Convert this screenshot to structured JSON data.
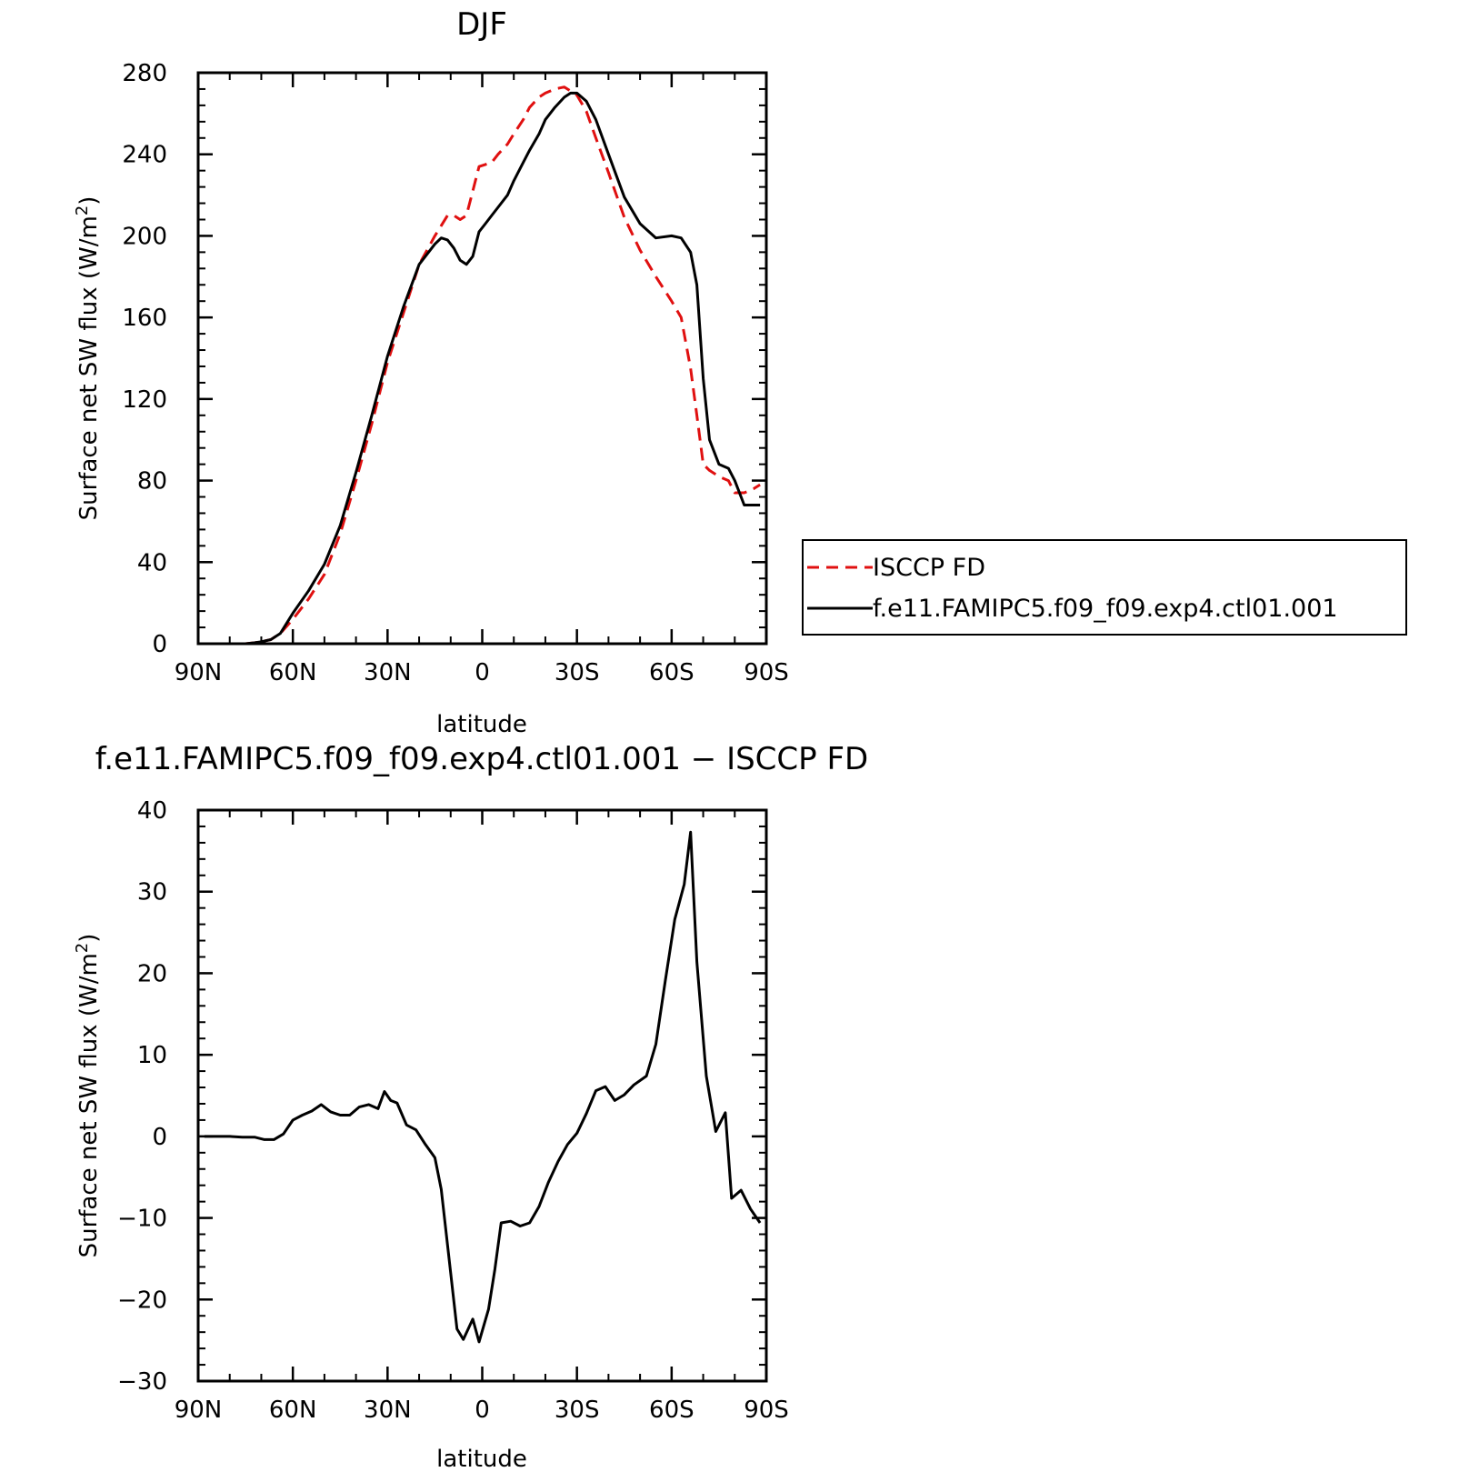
{
  "chart_data": [
    {
      "type": "line",
      "title": "DJF",
      "xlabel": "latitude",
      "ylabel_main": "Surface net SW flux (W/m",
      "ylabel_sup": "2",
      "ylabel_tail": ")",
      "xlim": [
        90,
        -90
      ],
      "ylim": [
        0,
        280
      ],
      "x_major_ticks": [
        90,
        60,
        30,
        0,
        -30,
        -60,
        -90
      ],
      "x_tick_labels": [
        "90N",
        "60N",
        "30N",
        "0",
        "30S",
        "60S",
        "90S"
      ],
      "y_major_ticks": [
        0,
        40,
        80,
        120,
        160,
        200,
        240,
        280
      ],
      "y_tick_labels": [
        "0",
        "40",
        "80",
        "120",
        "160",
        "200",
        "240",
        "280"
      ],
      "legend": {
        "placement": "right",
        "entries": [
          "ISCCP FD",
          "f.e11.FAMIPC5.f09_f09.exp4.ctl01.001"
        ]
      },
      "series": [
        {
          "name": "ISCCP FD",
          "color": "#e01010",
          "dash": true,
          "x": [
            88,
            85,
            80,
            75,
            72,
            70,
            67,
            64,
            60,
            55,
            50,
            45,
            40,
            35,
            30,
            25,
            20,
            15,
            13,
            11,
            9,
            7,
            5,
            3,
            1,
            -1,
            -3,
            -5,
            -8,
            -10,
            -13,
            -15,
            -18,
            -20,
            -23,
            -26,
            -28,
            -30,
            -33,
            -36,
            -40,
            -45,
            -50,
            -55,
            -60,
            -63,
            -66,
            -68,
            -70,
            -72,
            -75,
            -78,
            -80,
            -83,
            -86,
            -88
          ],
          "y": [
            0,
            0,
            0,
            0,
            0.5,
            1,
            2,
            5,
            12,
            22,
            34,
            54,
            80,
            108,
            138,
            162,
            186,
            200,
            205,
            210,
            210,
            208,
            210,
            222,
            234,
            235,
            236,
            240,
            245,
            250,
            257,
            263,
            268,
            270,
            272,
            273,
            271,
            269,
            261,
            248,
            231,
            209,
            193,
            180,
            168,
            160,
            135,
            112,
            88,
            85,
            82,
            80,
            74,
            74,
            76,
            78
          ]
        },
        {
          "name": "f.e11.FAMIPC5.f09_f09.exp4.ctl01.001",
          "color": "#000000",
          "dash": false,
          "x": [
            88,
            85,
            80,
            75,
            72,
            70,
            67,
            64,
            60,
            55,
            50,
            45,
            40,
            35,
            30,
            25,
            20,
            15,
            13,
            11,
            9,
            7,
            5,
            3,
            1,
            -1,
            -3,
            -5,
            -8,
            -10,
            -13,
            -15,
            -18,
            -20,
            -23,
            -26,
            -28,
            -30,
            -33,
            -36,
            -40,
            -45,
            -50,
            -55,
            -60,
            -63,
            -66,
            -68,
            -70,
            -72,
            -75,
            -78,
            -80,
            -83,
            -86,
            -88
          ],
          "y": [
            0,
            0,
            0,
            0,
            0.5,
            1,
            2,
            5,
            15,
            26,
            39,
            58,
            84,
            112,
            141,
            165,
            186,
            196,
            199,
            198,
            194,
            188,
            186,
            190,
            202,
            206,
            210,
            214,
            220,
            227,
            236,
            242,
            250,
            257,
            263,
            268,
            270,
            270,
            266,
            257,
            240,
            219,
            206,
            199,
            200,
            199,
            192,
            176,
            130,
            100,
            88,
            86,
            80,
            68,
            68,
            68
          ]
        }
      ]
    },
    {
      "type": "line",
      "title": "f.e11.FAMIPC5.f09_f09.exp4.ctl01.001 − ISCCP FD",
      "xlabel": "latitude",
      "ylabel_main": "Surface net SW flux (W/m",
      "ylabel_sup": "2",
      "ylabel_tail": ")",
      "xlim": [
        90,
        -90
      ],
      "ylim": [
        -30,
        40
      ],
      "x_major_ticks": [
        90,
        60,
        30,
        0,
        -30,
        -60,
        -90
      ],
      "x_tick_labels": [
        "90N",
        "60N",
        "30N",
        "0",
        "30S",
        "60S",
        "90S"
      ],
      "y_major_ticks": [
        -30,
        -20,
        -10,
        0,
        10,
        20,
        30,
        40
      ],
      "y_tick_labels": [
        "−30",
        "−20",
        "−10",
        "0",
        "10",
        "20",
        "30",
        "40"
      ],
      "series": [
        {
          "name": "",
          "color": "#000000",
          "dash": false,
          "x": [
            88,
            84,
            80,
            76,
            72,
            69,
            66,
            63,
            60,
            57,
            54,
            51,
            48,
            45,
            42,
            39,
            36,
            33,
            31,
            29,
            27,
            24,
            21,
            18,
            15,
            13,
            11,
            8,
            6,
            3,
            1,
            -2,
            -4,
            -6,
            -9,
            -12,
            -15,
            -18,
            -21,
            -24,
            -27,
            -30,
            -33,
            -36,
            -39,
            -42,
            -45,
            -48,
            -52,
            -55,
            -58,
            -61,
            -64,
            -66,
            -68,
            -71,
            -74,
            -77,
            -79,
            -82,
            -85,
            -88
          ],
          "y": [
            0,
            0,
            0,
            -0.1,
            -0.1,
            -0.4,
            -0.4,
            0.3,
            2,
            2.6,
            3.1,
            3.9,
            3,
            2.6,
            2.6,
            3.6,
            3.9,
            3.4,
            5.5,
            4.4,
            4.1,
            1.4,
            0.8,
            -1,
            -2.6,
            -6.5,
            -13.3,
            -23.6,
            -24.9,
            -22.4,
            -25.2,
            -21.2,
            -16.3,
            -10.6,
            -10.4,
            -11,
            -10.6,
            -8.6,
            -5.6,
            -3.1,
            -1,
            0.4,
            2.8,
            5.6,
            6.1,
            4.4,
            5.1,
            6.3,
            7.4,
            11.3,
            19.1,
            26.6,
            30.9,
            37.3,
            21.4,
            7.4,
            0.6,
            2.9,
            -7.6,
            -6.6,
            -8.9,
            -10.6
          ]
        }
      ]
    }
  ]
}
